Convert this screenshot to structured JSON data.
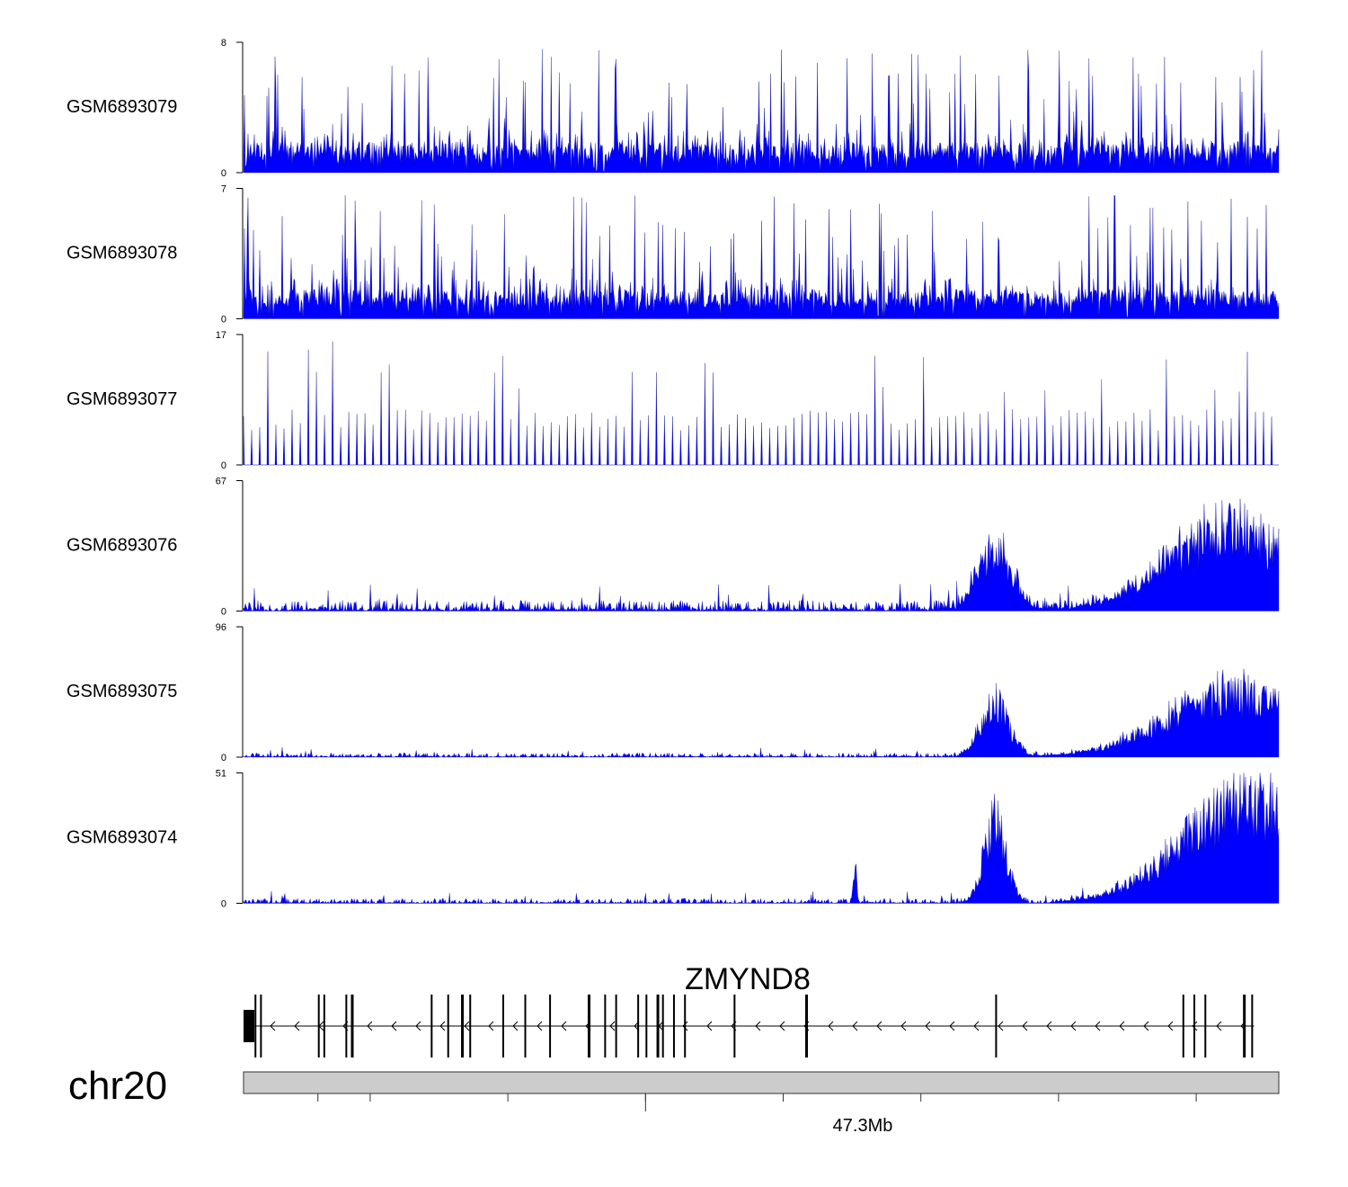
{
  "chart_data": {
    "type": "area",
    "title": "",
    "region": {
      "chromosome": "chr20",
      "start_mb": 47.154,
      "end_mb": 47.53
    },
    "color": "#0000ff",
    "tracks": [
      {
        "name": "GSM6893079",
        "ymax": 8,
        "ymin": 0,
        "ymax_label": "8",
        "ymin_label": "0",
        "pattern": "noise",
        "base": 1.2,
        "peaks": []
      },
      {
        "name": "GSM6893078",
        "ymax": 7,
        "ymin": 0,
        "ymax_label": "7",
        "ymin_label": "0",
        "pattern": "noise",
        "base": 1.0,
        "peaks": []
      },
      {
        "name": "GSM6893077",
        "ymax": 17,
        "ymin": 0,
        "ymax_label": "17",
        "ymin_label": "0",
        "pattern": "sparse",
        "base": 5.6,
        "peaks": []
      },
      {
        "name": "GSM6893076",
        "ymax": 67,
        "ymin": 0,
        "ymax_label": "67",
        "ymin_label": "0",
        "pattern": "low",
        "base": 3.5,
        "peaks": [
          {
            "pos_mb": 47.427,
            "height": 30,
            "width_mb": 0.006
          },
          {
            "pos_mb": 47.512,
            "height": 40,
            "width_mb": 0.022
          }
        ]
      },
      {
        "name": "GSM6893075",
        "ymax": 96,
        "ymin": 0,
        "ymax_label": "96",
        "ymin_label": "0",
        "pattern": "low",
        "base": 2.0,
        "peaks": [
          {
            "pos_mb": 47.427,
            "height": 38,
            "width_mb": 0.005
          },
          {
            "pos_mb": 47.513,
            "height": 45,
            "width_mb": 0.024
          }
        ]
      },
      {
        "name": "GSM6893074",
        "ymax": 51,
        "ymin": 0,
        "ymax_label": "51",
        "ymin_label": "0",
        "pattern": "low",
        "base": 1.2,
        "peaks": [
          {
            "pos_mb": 47.427,
            "height": 31,
            "width_mb": 0.004
          },
          {
            "pos_mb": 47.376,
            "height": 15,
            "width_mb": 0.0006
          },
          {
            "pos_mb": 47.519,
            "height": 38,
            "width_mb": 0.024
          }
        ]
      }
    ],
    "gene": {
      "name": "ZMYND8",
      "strand": "-",
      "start_mb": 47.154,
      "end_mb": 47.521,
      "exons_mb": [
        47.154,
        47.158,
        47.181,
        47.183,
        47.191,
        47.193,
        47.154,
        47.16,
        47.222,
        47.228,
        47.233,
        47.236,
        47.248,
        47.256,
        47.265,
        47.279,
        47.285,
        47.289,
        47.297,
        47.3,
        47.304,
        47.306,
        47.31,
        47.314,
        47.332,
        47.358,
        47.427,
        47.495,
        47.499,
        47.503,
        47.517,
        47.52
      ]
    },
    "axis": {
      "chromosome_label": "chr20",
      "tick_label": "47.3Mb",
      "tick_label_mb": 47.3,
      "ticks_mb": [
        47.181,
        47.2,
        47.25,
        47.3,
        47.35,
        47.4,
        47.45,
        47.5
      ]
    }
  }
}
